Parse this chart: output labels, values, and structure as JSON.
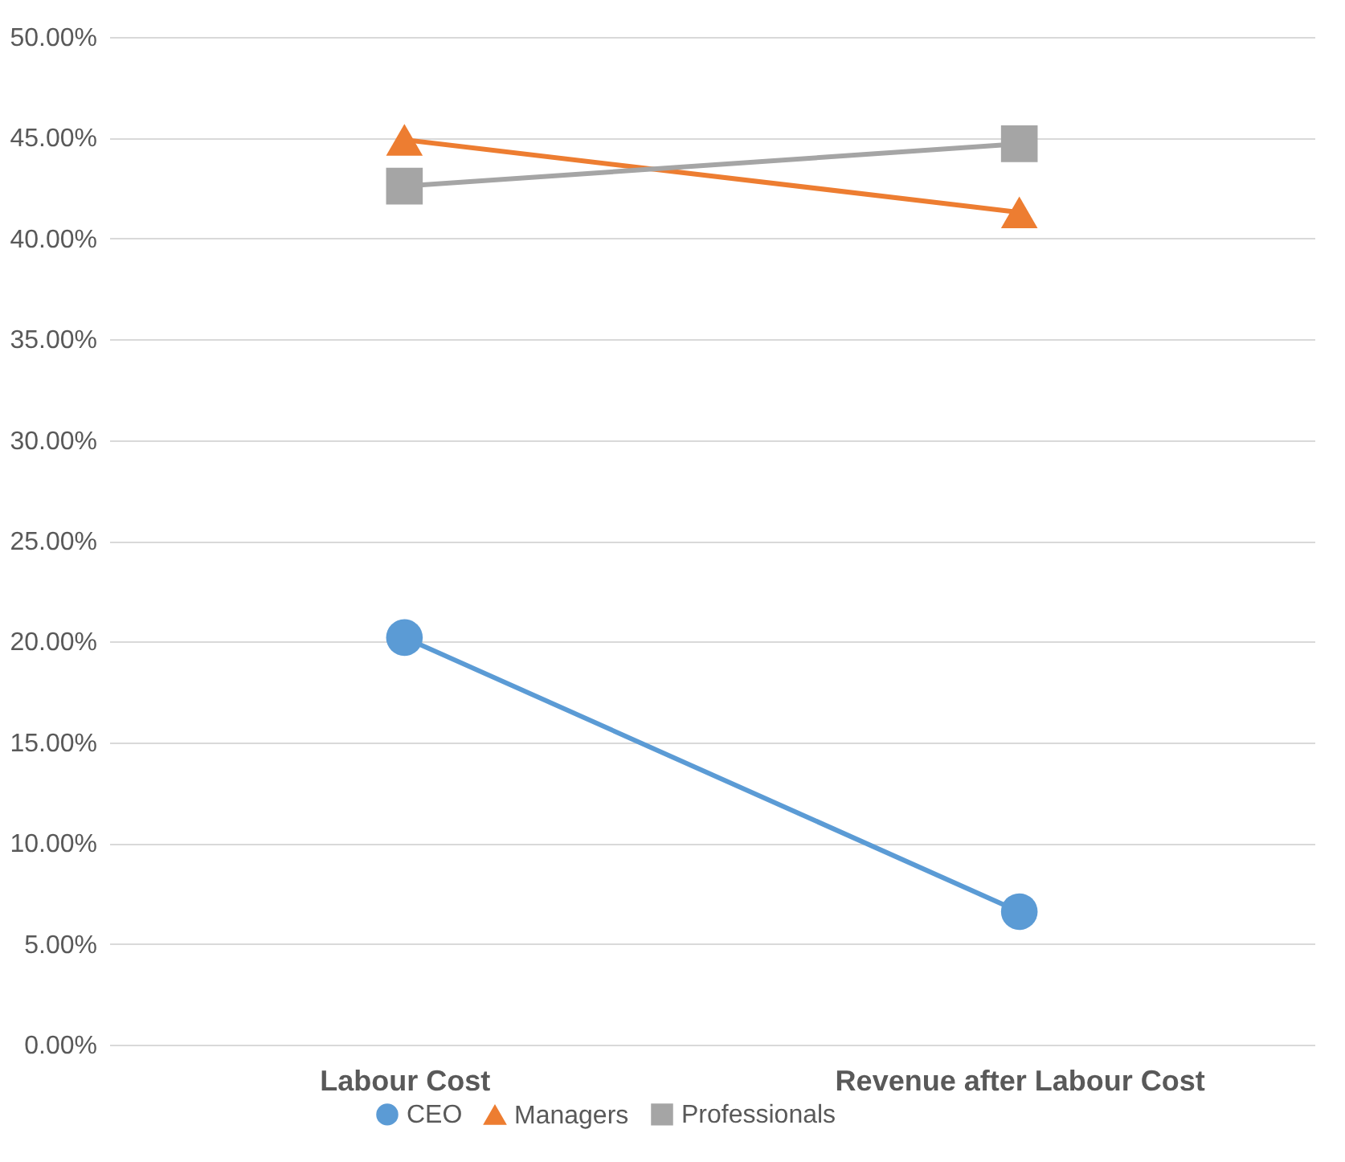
{
  "chart_data": {
    "type": "line",
    "categories": [
      "Labour Cost",
      "Revenue after Labour Cost"
    ],
    "series": [
      {
        "name": "CEO",
        "color": "#5b9bd5",
        "marker": "circle",
        "values": [
          20.2,
          6.6
        ]
      },
      {
        "name": "Managers",
        "color": "#ed7d31",
        "marker": "triangle",
        "values": [
          44.9,
          41.3
        ]
      },
      {
        "name": "Professionals",
        "color": "#a5a5a5",
        "marker": "square",
        "values": [
          42.6,
          44.7
        ]
      }
    ],
    "ylim": [
      0,
      50
    ],
    "yticks": [
      {
        "value": 0,
        "label": "0.00%"
      },
      {
        "value": 5,
        "label": "5.00%"
      },
      {
        "value": 10,
        "label": "10.00%"
      },
      {
        "value": 15,
        "label": "15.00%"
      },
      {
        "value": 20,
        "label": "20.00%"
      },
      {
        "value": 25,
        "label": "25.00%"
      },
      {
        "value": 30,
        "label": "30.00%"
      },
      {
        "value": 35,
        "label": "35.00%"
      },
      {
        "value": 40,
        "label": "40.00%"
      },
      {
        "value": 45,
        "label": "45.00%"
      },
      {
        "value": 50,
        "label": "50.00%"
      }
    ],
    "grid": "y",
    "legend": "bottom"
  }
}
